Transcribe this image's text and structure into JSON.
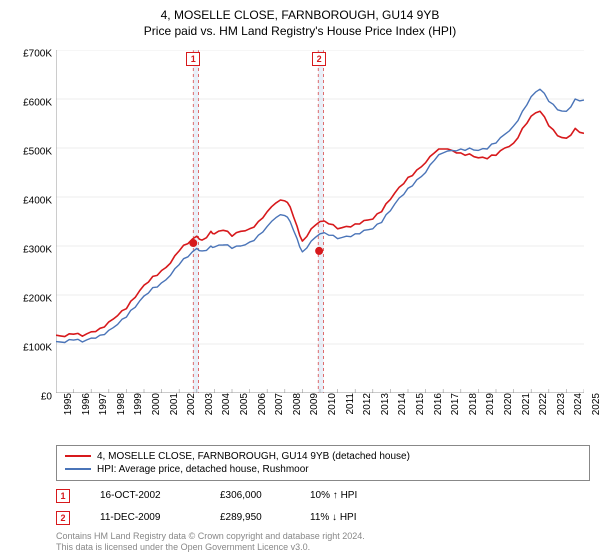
{
  "titles": {
    "line1": "4, MOSELLE CLOSE, FARNBOROUGH, GU14 9YB",
    "line2": "Price paid vs. HM Land Registry's House Price Index (HPI)"
  },
  "chart": {
    "type": "line",
    "background_color": "#ffffff",
    "grid_color": "#d9d9d9",
    "axis_color": "#999999",
    "ylim": [
      0,
      700000
    ],
    "ytick_step": 100000,
    "ytick_labels": [
      "£0",
      "£100K",
      "£200K",
      "£300K",
      "£400K",
      "£500K",
      "£600K",
      "£700K"
    ],
    "xlim": [
      1995,
      2025
    ],
    "xtick_labels": [
      "1995",
      "1996",
      "1997",
      "1998",
      "1999",
      "2000",
      "2001",
      "2002",
      "2003",
      "2004",
      "2005",
      "2006",
      "2007",
      "2008",
      "2009",
      "2010",
      "2011",
      "2012",
      "2013",
      "2014",
      "2015",
      "2016",
      "2017",
      "2018",
      "2019",
      "2020",
      "2021",
      "2022",
      "2023",
      "2024",
      "2025"
    ],
    "label_fontsize": 10,
    "title_fontsize": 12,
    "shaded_bands": [
      {
        "x_start": 2002.8,
        "x_end": 2003.1,
        "fill": "#e9eff8",
        "dash_color": "#d94a4a"
      },
      {
        "x_start": 2009.9,
        "x_end": 2010.2,
        "fill": "#e9eff8",
        "dash_color": "#d94a4a"
      }
    ],
    "series": [
      {
        "name": "red",
        "color": "#d7191c",
        "width": 1.6,
        "data": [
          [
            1995,
            118000
          ],
          [
            1995.5,
            115000
          ],
          [
            1996,
            120000
          ],
          [
            1996.5,
            116000
          ],
          [
            1997,
            125000
          ],
          [
            1997.5,
            132000
          ],
          [
            1998,
            145000
          ],
          [
            1998.5,
            158000
          ],
          [
            1999,
            172000
          ],
          [
            1999.5,
            195000
          ],
          [
            2000,
            220000
          ],
          [
            2000.5,
            238000
          ],
          [
            2001,
            250000
          ],
          [
            2001.5,
            265000
          ],
          [
            2002,
            290000
          ],
          [
            2002.5,
            305000
          ],
          [
            2003,
            320000
          ],
          [
            2003.3,
            312000
          ],
          [
            2003.8,
            330000
          ],
          [
            2004,
            325000
          ],
          [
            2004.5,
            332000
          ],
          [
            2005,
            320000
          ],
          [
            2005.5,
            330000
          ],
          [
            2006,
            335000
          ],
          [
            2006.5,
            350000
          ],
          [
            2007,
            370000
          ],
          [
            2007.5,
            388000
          ],
          [
            2008,
            392000
          ],
          [
            2008.3,
            380000
          ],
          [
            2008.7,
            340000
          ],
          [
            2009,
            310000
          ],
          [
            2009.5,
            335000
          ],
          [
            2010,
            350000
          ],
          [
            2010.5,
            345000
          ],
          [
            2011,
            335000
          ],
          [
            2011.5,
            340000
          ],
          [
            2012,
            345000
          ],
          [
            2012.5,
            352000
          ],
          [
            2013,
            355000
          ],
          [
            2013.5,
            370000
          ],
          [
            2014,
            395000
          ],
          [
            2014.5,
            420000
          ],
          [
            2015,
            440000
          ],
          [
            2015.5,
            455000
          ],
          [
            2016,
            470000
          ],
          [
            2016.5,
            490000
          ],
          [
            2017,
            498000
          ],
          [
            2017.5,
            495000
          ],
          [
            2018,
            490000
          ],
          [
            2018.5,
            488000
          ],
          [
            2019,
            480000
          ],
          [
            2019.5,
            478000
          ],
          [
            2020,
            485000
          ],
          [
            2020.5,
            500000
          ],
          [
            2021,
            510000
          ],
          [
            2021.5,
            540000
          ],
          [
            2022,
            565000
          ],
          [
            2022.5,
            575000
          ],
          [
            2023,
            545000
          ],
          [
            2023.5,
            525000
          ],
          [
            2024,
            520000
          ],
          [
            2024.5,
            540000
          ],
          [
            2025,
            530000
          ]
        ]
      },
      {
        "name": "blue",
        "color": "#4a74b8",
        "width": 1.4,
        "data": [
          [
            1995,
            105000
          ],
          [
            1995.5,
            103000
          ],
          [
            1996,
            108000
          ],
          [
            1996.5,
            104000
          ],
          [
            1997,
            112000
          ],
          [
            1997.5,
            118000
          ],
          [
            1998,
            128000
          ],
          [
            1998.5,
            140000
          ],
          [
            1999,
            155000
          ],
          [
            1999.5,
            175000
          ],
          [
            2000,
            198000
          ],
          [
            2000.5,
            215000
          ],
          [
            2001,
            225000
          ],
          [
            2001.5,
            240000
          ],
          [
            2002,
            262000
          ],
          [
            2002.5,
            278000
          ],
          [
            2003,
            295000
          ],
          [
            2003.3,
            290000
          ],
          [
            2003.8,
            300000
          ],
          [
            2004,
            298000
          ],
          [
            2004.5,
            302000
          ],
          [
            2005,
            295000
          ],
          [
            2005.5,
            300000
          ],
          [
            2006,
            308000
          ],
          [
            2006.5,
            322000
          ],
          [
            2007,
            340000
          ],
          [
            2007.5,
            358000
          ],
          [
            2008,
            362000
          ],
          [
            2008.3,
            350000
          ],
          [
            2008.7,
            315000
          ],
          [
            2009,
            288000
          ],
          [
            2009.5,
            310000
          ],
          [
            2010,
            325000
          ],
          [
            2010.5,
            322000
          ],
          [
            2011,
            315000
          ],
          [
            2011.5,
            320000
          ],
          [
            2012,
            325000
          ],
          [
            2012.5,
            332000
          ],
          [
            2013,
            335000
          ],
          [
            2013.5,
            348000
          ],
          [
            2014,
            372000
          ],
          [
            2014.5,
            398000
          ],
          [
            2015,
            418000
          ],
          [
            2015.5,
            435000
          ],
          [
            2016,
            450000
          ],
          [
            2016.5,
            475000
          ],
          [
            2017,
            490000
          ],
          [
            2017.5,
            495000
          ],
          [
            2018,
            498000
          ],
          [
            2018.5,
            500000
          ],
          [
            2019,
            495000
          ],
          [
            2019.5,
            498000
          ],
          [
            2020,
            510000
          ],
          [
            2020.5,
            528000
          ],
          [
            2021,
            545000
          ],
          [
            2021.5,
            575000
          ],
          [
            2022,
            605000
          ],
          [
            2022.5,
            620000
          ],
          [
            2023,
            595000
          ],
          [
            2023.5,
            578000
          ],
          [
            2024,
            575000
          ],
          [
            2024.5,
            600000
          ],
          [
            2025,
            598000
          ]
        ]
      }
    ],
    "markers": [
      {
        "label": "1",
        "x": 2002.8,
        "y": 306000,
        "color": "#d7191c",
        "badge_top": true
      },
      {
        "label": "2",
        "x": 2009.95,
        "y": 289950,
        "color": "#d7191c",
        "badge_top": true
      }
    ]
  },
  "legend": {
    "items": [
      {
        "color": "#d7191c",
        "text": "4, MOSELLE CLOSE, FARNBOROUGH, GU14 9YB (detached house)"
      },
      {
        "color": "#4a74b8",
        "text": "HPI: Average price, detached house, Rushmoor"
      }
    ]
  },
  "transactions": [
    {
      "num": "1",
      "color": "#d7191c",
      "date": "16-OCT-2002",
      "price": "£306,000",
      "delta": "10% ↑ HPI"
    },
    {
      "num": "2",
      "color": "#d7191c",
      "date": "11-DEC-2009",
      "price": "£289,950",
      "delta": "11% ↓ HPI"
    }
  ],
  "footer": {
    "line1": "Contains HM Land Registry data © Crown copyright and database right 2024.",
    "line2": "This data is licensed under the Open Government Licence v3.0."
  }
}
